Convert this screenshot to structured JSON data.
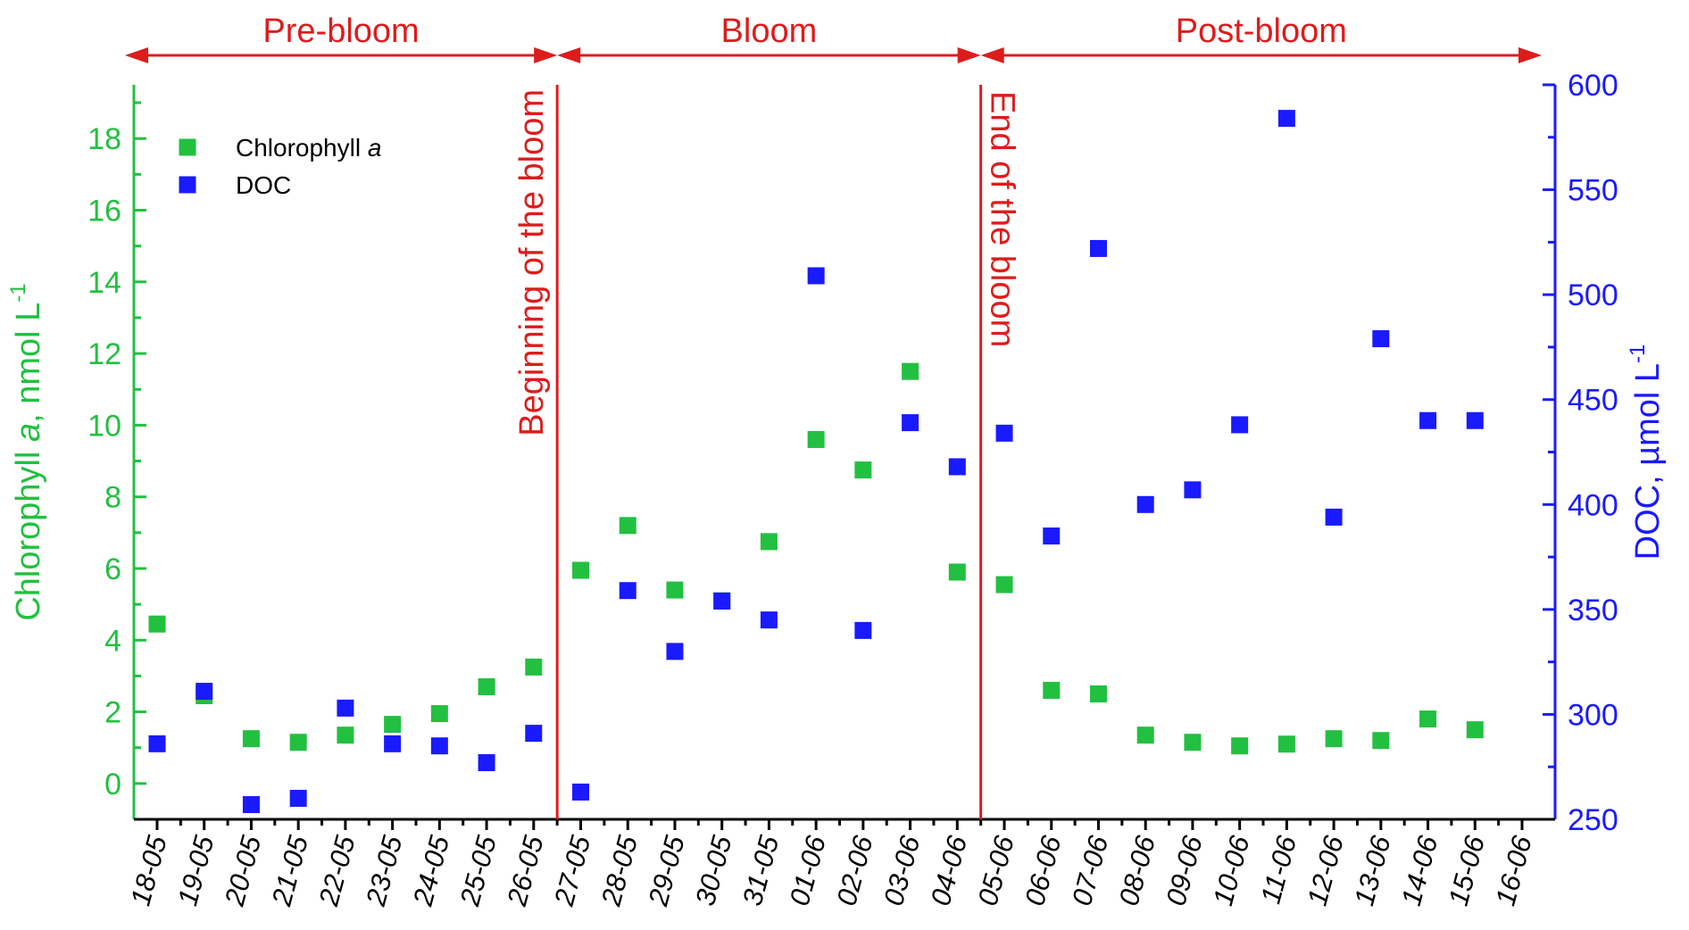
{
  "chart_data": {
    "type": "scatter",
    "categories": [
      "18-05",
      "19-05",
      "20-05",
      "21-05",
      "22-05",
      "23-05",
      "24-05",
      "25-05",
      "26-05",
      "27-05",
      "28-05",
      "29-05",
      "30-05",
      "31-05",
      "01-06",
      "02-06",
      "03-06",
      "04-06",
      "05-06",
      "06-06",
      "07-06",
      "08-06",
      "09-06",
      "10-06",
      "11-06",
      "12-06",
      "13-06",
      "14-06",
      "15-06",
      "16-06"
    ],
    "y_left": {
      "label_main": "Chlorophyll ",
      "label_italic": "a",
      "label_unit": ", nmol L",
      "label_sup": "-1",
      "ylim": [
        -1,
        19.5
      ],
      "ticks": [
        "0",
        "2",
        "4",
        "6",
        "8",
        "10",
        "12",
        "14",
        "16",
        "18"
      ],
      "tick_values": [
        0,
        2,
        4,
        6,
        8,
        10,
        12,
        14,
        16,
        18
      ],
      "color": "#22c040"
    },
    "y_right": {
      "label_main": "DOC, µmol L",
      "label_sup": "-1",
      "ylim": [
        250,
        600
      ],
      "ticks": [
        "250",
        "300",
        "350",
        "400",
        "450",
        "500",
        "550",
        "600"
      ],
      "tick_values": [
        250,
        300,
        350,
        400,
        450,
        500,
        550,
        600
      ],
      "color": "#1a1aff"
    },
    "series": [
      {
        "name_main": "Chlorophyll ",
        "name_italic": "a",
        "axis": "left",
        "color": "#22c040",
        "values": [
          4.45,
          2.45,
          1.25,
          1.15,
          1.35,
          1.65,
          1.95,
          2.7,
          3.25,
          5.95,
          7.2,
          5.4,
          5.1,
          6.75,
          9.6,
          8.75,
          11.5,
          5.9,
          5.55,
          2.6,
          2.5,
          1.35,
          1.15,
          1.05,
          1.1,
          1.25,
          1.2,
          1.8,
          1.5,
          null
        ]
      },
      {
        "name_main": "DOC",
        "axis": "right",
        "color": "#1a1aff",
        "values": [
          286,
          311,
          257,
          260,
          303,
          286,
          285,
          277,
          291,
          263,
          359,
          330,
          354,
          345,
          509,
          340,
          439,
          418,
          434,
          385,
          522,
          400,
          407,
          438,
          584,
          394,
          479,
          440,
          440,
          null
        ]
      }
    ],
    "phases": [
      {
        "label": "Pre-bloom",
        "from": "18-05",
        "to": "26-05"
      },
      {
        "label": "Bloom",
        "from": "27-05",
        "to": "04-06"
      },
      {
        "label": "Post-bloom",
        "from": "05-06",
        "to": "16-06"
      }
    ],
    "annotations": [
      "Beginning of the bloom",
      "End of the bloom"
    ],
    "annotation_color": "#dd1c1c",
    "legend_position": "top-left"
  }
}
